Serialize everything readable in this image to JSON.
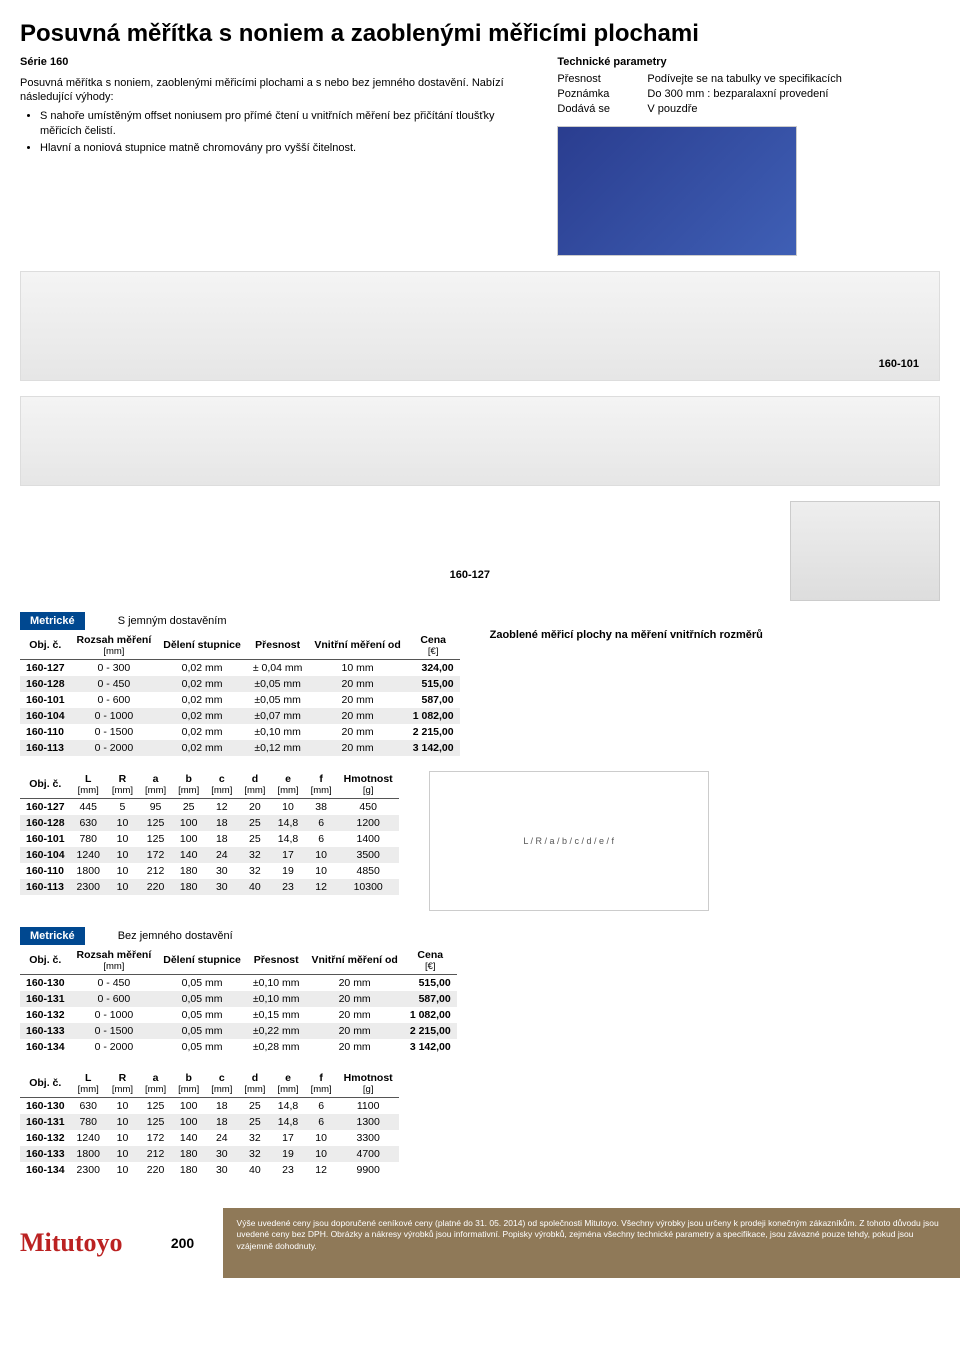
{
  "title": "Posuvná měřítka s noniem a zaoblenými měřicími plochami",
  "series": "Série 160",
  "desc1": "Posuvná měřítka s noniem, zaoblenými měřicími plochami a s nebo bez jemného dostavění. Nabízí následující výhody:",
  "bullets": [
    "S nahoře umístěným offset noniusem pro přímé čtení u vnitřních měření bez přičítání tloušťky měřicích čelistí.",
    "Hlavní a noniová stupnice matně chromovány pro vyšší čitelnost."
  ],
  "techParams": {
    "title": "Technické parametry",
    "rows": [
      {
        "k": "Přesnost",
        "v": "Podívejte se na tabulky ve specifikacích"
      },
      {
        "k": "Poznámka",
        "v": "Do 300 mm : bezparalaxní provedení"
      },
      {
        "k": "Dodává se",
        "v": "V pouzdře"
      }
    ]
  },
  "imgLabel1": "160-101",
  "imgLabel2": "160-127",
  "note_zaoble": "Zaoblené měřicí plochy na měření vnitřních rozměrů",
  "badge": "Metrické",
  "sub1": "S jemným dostavěním",
  "sub2": "Bez jemného dostavění",
  "th": {
    "objc": "Obj. č.",
    "range": "Rozsah měření",
    "range_sub": "[mm]",
    "grad": "Dělení stupnice",
    "acc": "Přesnost",
    "inner": "Vnitřní měření od",
    "price": "Cena",
    "price_sub": "[€]",
    "L": "L",
    "R": "R",
    "a": "a",
    "b": "b",
    "c": "c",
    "d": "d",
    "e": "e",
    "f": "f",
    "wt": "Hmotnost",
    "mm": "[mm]",
    "g": "[g]"
  },
  "tableA": [
    {
      "o": "160-127",
      "r": "0 - 300",
      "g": "0,02 mm",
      "a": "± 0,04 mm",
      "i": "10 mm",
      "p": "324,00"
    },
    {
      "o": "160-128",
      "r": "0 - 450",
      "g": "0,02 mm",
      "a": "±0,05 mm",
      "i": "20 mm",
      "p": "515,00"
    },
    {
      "o": "160-101",
      "r": "0 - 600",
      "g": "0,02 mm",
      "a": "±0,05 mm",
      "i": "20 mm",
      "p": "587,00"
    },
    {
      "o": "160-104",
      "r": "0 - 1000",
      "g": "0,02 mm",
      "a": "±0,07 mm",
      "i": "20 mm",
      "p": "1 082,00"
    },
    {
      "o": "160-110",
      "r": "0 - 1500",
      "g": "0,02 mm",
      "a": "±0,10 mm",
      "i": "20 mm",
      "p": "2 215,00"
    },
    {
      "o": "160-113",
      "r": "0 - 2000",
      "g": "0,02 mm",
      "a": "±0,12 mm",
      "i": "20 mm",
      "p": "3 142,00"
    }
  ],
  "tableB": [
    {
      "o": "160-127",
      "L": "445",
      "R": "5",
      "a": "95",
      "b": "25",
      "c": "12",
      "d": "20",
      "e": "10",
      "f": "38",
      "w": "450"
    },
    {
      "o": "160-128",
      "L": "630",
      "R": "10",
      "a": "125",
      "b": "100",
      "c": "18",
      "d": "25",
      "e": "14,8",
      "f": "6",
      "w": "1200"
    },
    {
      "o": "160-101",
      "L": "780",
      "R": "10",
      "a": "125",
      "b": "100",
      "c": "18",
      "d": "25",
      "e": "14,8",
      "f": "6",
      "w": "1400"
    },
    {
      "o": "160-104",
      "L": "1240",
      "R": "10",
      "a": "172",
      "b": "140",
      "c": "24",
      "d": "32",
      "e": "17",
      "f": "10",
      "w": "3500"
    },
    {
      "o": "160-110",
      "L": "1800",
      "R": "10",
      "a": "212",
      "b": "180",
      "c": "30",
      "d": "32",
      "e": "19",
      "f": "10",
      "w": "4850"
    },
    {
      "o": "160-113",
      "L": "2300",
      "R": "10",
      "a": "220",
      "b": "180",
      "c": "30",
      "d": "40",
      "e": "23",
      "f": "12",
      "w": "10300"
    }
  ],
  "tableC": [
    {
      "o": "160-130",
      "r": "0 - 450",
      "g": "0,05 mm",
      "a": "±0,10 mm",
      "i": "20 mm",
      "p": "515,00"
    },
    {
      "o": "160-131",
      "r": "0 - 600",
      "g": "0,05 mm",
      "a": "±0,10 mm",
      "i": "20 mm",
      "p": "587,00"
    },
    {
      "o": "160-132",
      "r": "0 - 1000",
      "g": "0,05 mm",
      "a": "±0,15 mm",
      "i": "20 mm",
      "p": "1 082,00"
    },
    {
      "o": "160-133",
      "r": "0 - 1500",
      "g": "0,05 mm",
      "a": "±0,22 mm",
      "i": "20 mm",
      "p": "2 215,00"
    },
    {
      "o": "160-134",
      "r": "0 - 2000",
      "g": "0,05 mm",
      "a": "±0,28 mm",
      "i": "20 mm",
      "p": "3 142,00"
    }
  ],
  "tableD": [
    {
      "o": "160-130",
      "L": "630",
      "R": "10",
      "a": "125",
      "b": "100",
      "c": "18",
      "d": "25",
      "e": "14,8",
      "f": "6",
      "w": "1100"
    },
    {
      "o": "160-131",
      "L": "780",
      "R": "10",
      "a": "125",
      "b": "100",
      "c": "18",
      "d": "25",
      "e": "14,8",
      "f": "6",
      "w": "1300"
    },
    {
      "o": "160-132",
      "L": "1240",
      "R": "10",
      "a": "172",
      "b": "140",
      "c": "24",
      "d": "32",
      "e": "17",
      "f": "10",
      "w": "3300"
    },
    {
      "o": "160-133",
      "L": "1800",
      "R": "10",
      "a": "212",
      "b": "180",
      "c": "30",
      "d": "32",
      "e": "19",
      "f": "10",
      "w": "4700"
    },
    {
      "o": "160-134",
      "L": "2300",
      "R": "10",
      "a": "220",
      "b": "180",
      "c": "30",
      "d": "40",
      "e": "23",
      "f": "12",
      "w": "9900"
    }
  ],
  "logo": "Mitutoyo",
  "pageNum": "200",
  "footer": "Výše uvedené ceny jsou doporučené ceníkové ceny (platné do 31. 05. 2014) od společnosti Mitutoyo. Všechny výrobky jsou určeny k prodeji konečným zákazníkům. Z tohoto důvodu jsou uvedené ceny bez DPH. Obrázky a nákresy výrobků jsou informativní. Popisky výrobků, zejména všechny technické parametry a specifikace, jsou závazné pouze tehdy, pokud jsou vzájemně dohodnuty."
}
